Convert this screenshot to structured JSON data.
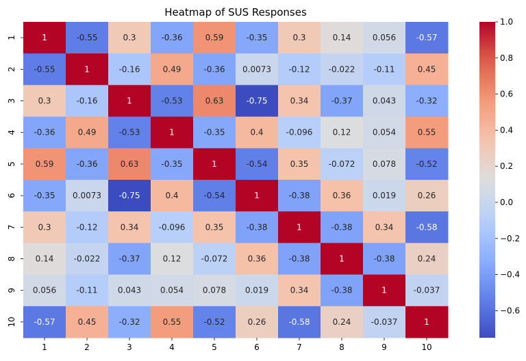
{
  "chart_data": {
    "type": "heatmap",
    "title": "Heatmap of SUS Responses",
    "xlabel": "",
    "ylabel": "",
    "x_categories": [
      "1",
      "2",
      "3",
      "4",
      "5",
      "6",
      "7",
      "8",
      "9",
      "10"
    ],
    "y_categories": [
      "1",
      "2",
      "3",
      "4",
      "5",
      "6",
      "7",
      "8",
      "9",
      "10"
    ],
    "values": [
      [
        1,
        -0.55,
        0.3,
        -0.36,
        0.59,
        -0.35,
        0.3,
        0.14,
        0.056,
        -0.57
      ],
      [
        -0.55,
        1,
        -0.16,
        0.49,
        -0.36,
        0.0073,
        -0.12,
        -0.022,
        -0.11,
        0.45
      ],
      [
        0.3,
        -0.16,
        1,
        -0.53,
        0.63,
        -0.75,
        0.34,
        -0.37,
        0.043,
        -0.32
      ],
      [
        -0.36,
        0.49,
        -0.53,
        1,
        -0.35,
        0.4,
        -0.096,
        0.12,
        0.054,
        0.55
      ],
      [
        0.59,
        -0.36,
        0.63,
        -0.35,
        1,
        -0.54,
        0.35,
        -0.072,
        0.078,
        -0.52
      ],
      [
        -0.35,
        0.0073,
        -0.75,
        0.4,
        -0.54,
        1,
        -0.38,
        0.36,
        0.019,
        0.26
      ],
      [
        0.3,
        -0.12,
        0.34,
        -0.096,
        0.35,
        -0.38,
        1,
        -0.38,
        0.34,
        -0.58
      ],
      [
        0.14,
        -0.022,
        -0.37,
        0.12,
        -0.072,
        0.36,
        -0.38,
        1,
        -0.38,
        0.24
      ],
      [
        0.056,
        -0.11,
        0.043,
        0.054,
        0.078,
        0.019,
        0.34,
        -0.38,
        1,
        -0.037
      ],
      [
        -0.57,
        0.45,
        -0.32,
        0.55,
        -0.52,
        0.26,
        -0.58,
        0.24,
        -0.037,
        1
      ]
    ],
    "value_labels": [
      [
        "1",
        "-0.55",
        "0.3",
        "-0.36",
        "0.59",
        "-0.35",
        "0.3",
        "0.14",
        "0.056",
        "-0.57"
      ],
      [
        "-0.55",
        "1",
        "-0.16",
        "0.49",
        "-0.36",
        "0.0073",
        "-0.12",
        "-0.022",
        "-0.11",
        "0.45"
      ],
      [
        "0.3",
        "-0.16",
        "1",
        "-0.53",
        "0.63",
        "-0.75",
        "0.34",
        "-0.37",
        "0.043",
        "-0.32"
      ],
      [
        "-0.36",
        "0.49",
        "-0.53",
        "1",
        "-0.35",
        "0.4",
        "-0.096",
        "0.12",
        "0.054",
        "0.55"
      ],
      [
        "0.59",
        "-0.36",
        "0.63",
        "-0.35",
        "1",
        "-0.54",
        "0.35",
        "-0.072",
        "0.078",
        "-0.52"
      ],
      [
        "-0.35",
        "0.0073",
        "-0.75",
        "0.4",
        "-0.54",
        "1",
        "-0.38",
        "0.36",
        "0.019",
        "0.26"
      ],
      [
        "0.3",
        "-0.12",
        "0.34",
        "-0.096",
        "0.35",
        "-0.38",
        "1",
        "-0.38",
        "0.34",
        "-0.58"
      ],
      [
        "0.14",
        "-0.022",
        "-0.37",
        "0.12",
        "-0.072",
        "0.36",
        "-0.38",
        "1",
        "-0.38",
        "0.24"
      ],
      [
        "0.056",
        "-0.11",
        "0.043",
        "0.054",
        "0.078",
        "0.019",
        "0.34",
        "-0.38",
        "1",
        "-0.037"
      ],
      [
        "-0.57",
        "0.45",
        "-0.32",
        "0.55",
        "-0.52",
        "0.26",
        "-0.58",
        "0.24",
        "-0.037",
        "1"
      ]
    ],
    "colormap": "coolwarm",
    "color_range": [
      -0.75,
      1.0
    ],
    "colorbar": {
      "ticks": [
        -0.6,
        -0.4,
        -0.2,
        0.0,
        0.2,
        0.4,
        0.6,
        0.8,
        1.0
      ],
      "tick_labels": [
        "−0.6",
        "−0.4",
        "−0.2",
        "0.0",
        "0.2",
        "0.4",
        "0.6",
        "0.8",
        "1.0"
      ],
      "placement": "right"
    },
    "grid": false,
    "legend": false
  }
}
